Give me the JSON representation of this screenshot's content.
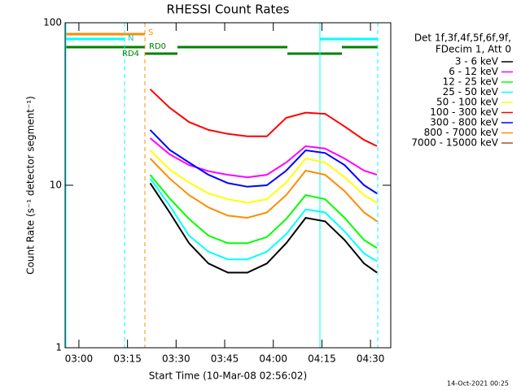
{
  "chart_data": {
    "type": "line",
    "title": "RHESSI Count Rates",
    "xlabel": "Start Time (10-Mar-08 02:56:02)",
    "ylabel": "Count Rate (s⁻¹ detector segment⁻¹)",
    "log_y": true,
    "x": [
      202,
      208,
      214,
      220,
      226,
      232,
      238,
      244,
      250,
      256,
      262,
      268,
      272
    ],
    "xlim": [
      175.75,
      276.25
    ],
    "xticks": [
      {
        "value": 180,
        "label": "03:00"
      },
      {
        "value": 195,
        "label": "03:15"
      },
      {
        "value": 210,
        "label": "03:30"
      },
      {
        "value": 225,
        "label": "03:45"
      },
      {
        "value": 240,
        "label": "04:00"
      },
      {
        "value": 255,
        "label": "04:15"
      },
      {
        "value": 270,
        "label": "04:30"
      }
    ],
    "ylim": [
      1,
      100
    ],
    "yticks": [
      1,
      10,
      100
    ],
    "legend_header": [
      "Det 1f,3f,4f,5f,6f,9f,",
      "FDecim 1, Att 0"
    ],
    "legend_position": "right",
    "annotations": [
      "S",
      "N",
      "RD4",
      "RD0"
    ],
    "footer": "14-Oct-2021 00:25",
    "series": [
      {
        "name": "3 - 6 keV",
        "color": "#000000",
        "values": [
          10.3,
          6.8,
          4.4,
          3.3,
          2.9,
          2.9,
          3.3,
          4.4,
          6.3,
          6.0,
          4.6,
          3.3,
          2.9
        ]
      },
      {
        "name": "6 - 12 keV",
        "color": "#ff00ff",
        "values": [
          19.5,
          15.5,
          13.3,
          12.2,
          11.6,
          11.2,
          11.6,
          13.8,
          17.4,
          16.8,
          14.6,
          12.3,
          11.6
        ]
      },
      {
        "name": "12 - 25 keV",
        "color": "#00ff00",
        "values": [
          11.6,
          8.3,
          6.2,
          4.9,
          4.4,
          4.4,
          4.8,
          6.2,
          8.7,
          8.2,
          6.3,
          4.6,
          4.1
        ]
      },
      {
        "name": "25 - 50 keV",
        "color": "#00ffff",
        "values": [
          11.0,
          7.5,
          4.9,
          3.9,
          3.5,
          3.5,
          3.9,
          5.0,
          7.1,
          6.8,
          5.2,
          3.8,
          3.4
        ]
      },
      {
        "name": "50 - 100 keV",
        "color": "#ffff00",
        "values": [
          16.4,
          12.5,
          10.4,
          8.9,
          8.2,
          7.8,
          8.2,
          10.4,
          14.6,
          13.8,
          11.2,
          8.7,
          7.8
        ]
      },
      {
        "name": "100 - 300 keV",
        "color": "#ff0000",
        "values": [
          39,
          30,
          24.5,
          21.9,
          20.7,
          20,
          20,
          26,
          28,
          27.5,
          23,
          19,
          17.4
        ]
      },
      {
        "name": "300 - 800 keV",
        "color": "#0000ff",
        "values": [
          21.9,
          16.5,
          13.8,
          11.6,
          10.3,
          9.8,
          10,
          12.3,
          16.4,
          15.8,
          13.3,
          10,
          8.9
        ]
      },
      {
        "name": "800 - 7000 keV",
        "color": "#ff8c00",
        "values": [
          14.6,
          11,
          8.7,
          7.3,
          6.5,
          6.3,
          6.8,
          8.7,
          12.3,
          11.6,
          9.2,
          6.8,
          6.0
        ]
      },
      {
        "name": "7000 - 15000 keV",
        "color": "#a0522d",
        "values": [
          null,
          null,
          null,
          null,
          null,
          null,
          null,
          null,
          null,
          null,
          null,
          null,
          null
        ]
      }
    ]
  }
}
